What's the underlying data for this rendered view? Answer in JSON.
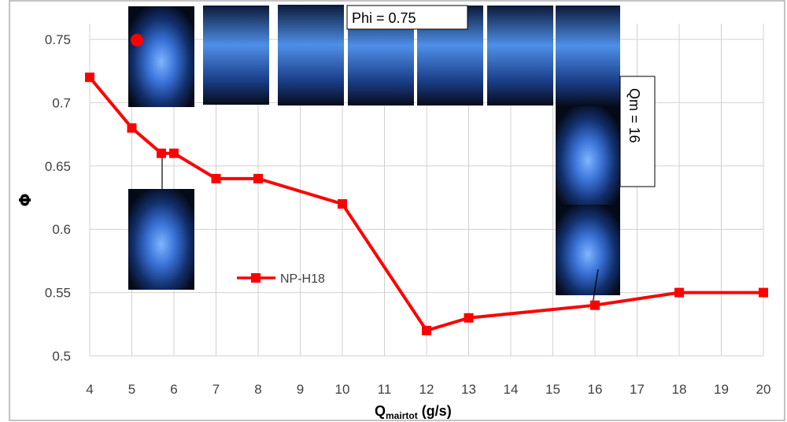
{
  "chart_data": {
    "type": "line",
    "xlabel": "Q",
    "xlabel_sub": "mairtot",
    "xlabel_unit": " (g/s)",
    "ylabel": "Φ",
    "x_ticks": [
      "4",
      "5",
      "6",
      "7",
      "8",
      "9",
      "10",
      "11",
      "12",
      "13",
      "14",
      "15",
      "16",
      "17",
      "18",
      "19",
      "20"
    ],
    "y_ticks": [
      "0.5",
      "0.55",
      "0.6",
      "0.65",
      "0.7",
      "0.75"
    ],
    "xlim": [
      4,
      20
    ],
    "ylim": [
      0.5,
      0.75
    ],
    "grid": "horizontal",
    "legend_position": "center-left",
    "series": [
      {
        "name": "NP-H18",
        "color": "#ff0000",
        "x": [
          4,
          5,
          5.7,
          6,
          7,
          8,
          10,
          12,
          13,
          16,
          18,
          20
        ],
        "y": [
          0.72,
          0.68,
          0.66,
          0.66,
          0.64,
          0.64,
          0.62,
          0.52,
          0.53,
          0.54,
          0.55,
          0.55
        ]
      }
    ],
    "annotations": {
      "phi_box": "Phi = 0.75",
      "qm_box": "Qm = 16"
    }
  }
}
